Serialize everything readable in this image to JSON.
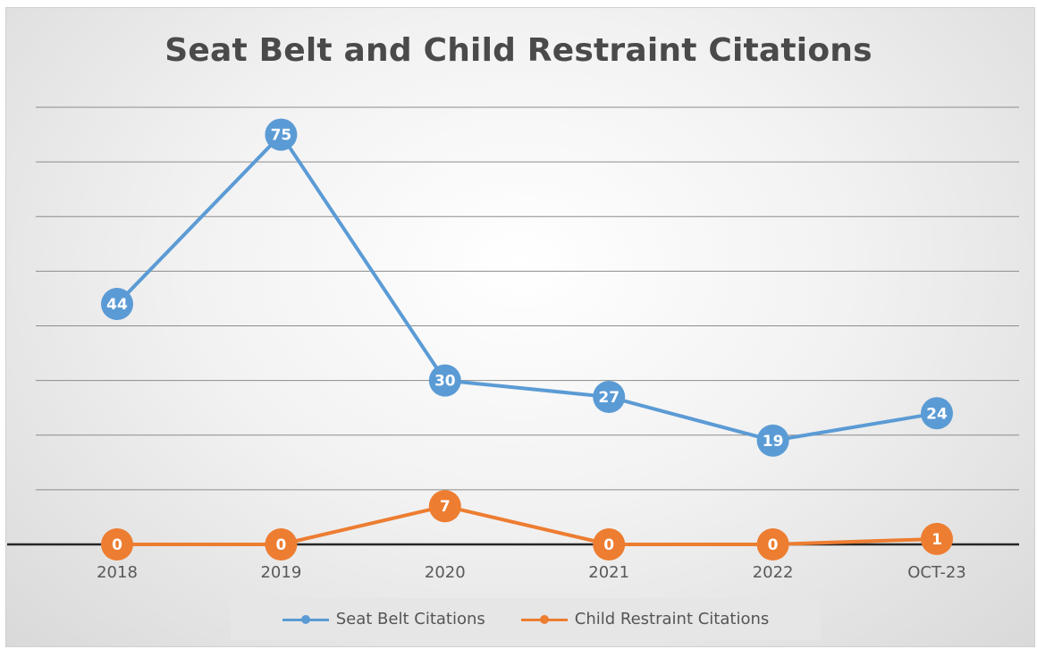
{
  "chart_data": {
    "type": "line",
    "title": "Seat Belt and Child Restraint Citations",
    "xlabel": "",
    "ylabel": "",
    "categories": [
      "2018",
      "2019",
      "2020",
      "2021",
      "2022",
      "OCT-23"
    ],
    "ylim": [
      0,
      80
    ],
    "grid": true,
    "legend_position": "bottom",
    "series": [
      {
        "name": "Seat Belt Citations",
        "values": [
          44,
          75,
          30,
          27,
          19,
          24
        ],
        "color": "#5b9bd5"
      },
      {
        "name": "Child Restraint Citations",
        "values": [
          0,
          0,
          7,
          0,
          0,
          1
        ],
        "color": "#ed7d31"
      }
    ]
  }
}
